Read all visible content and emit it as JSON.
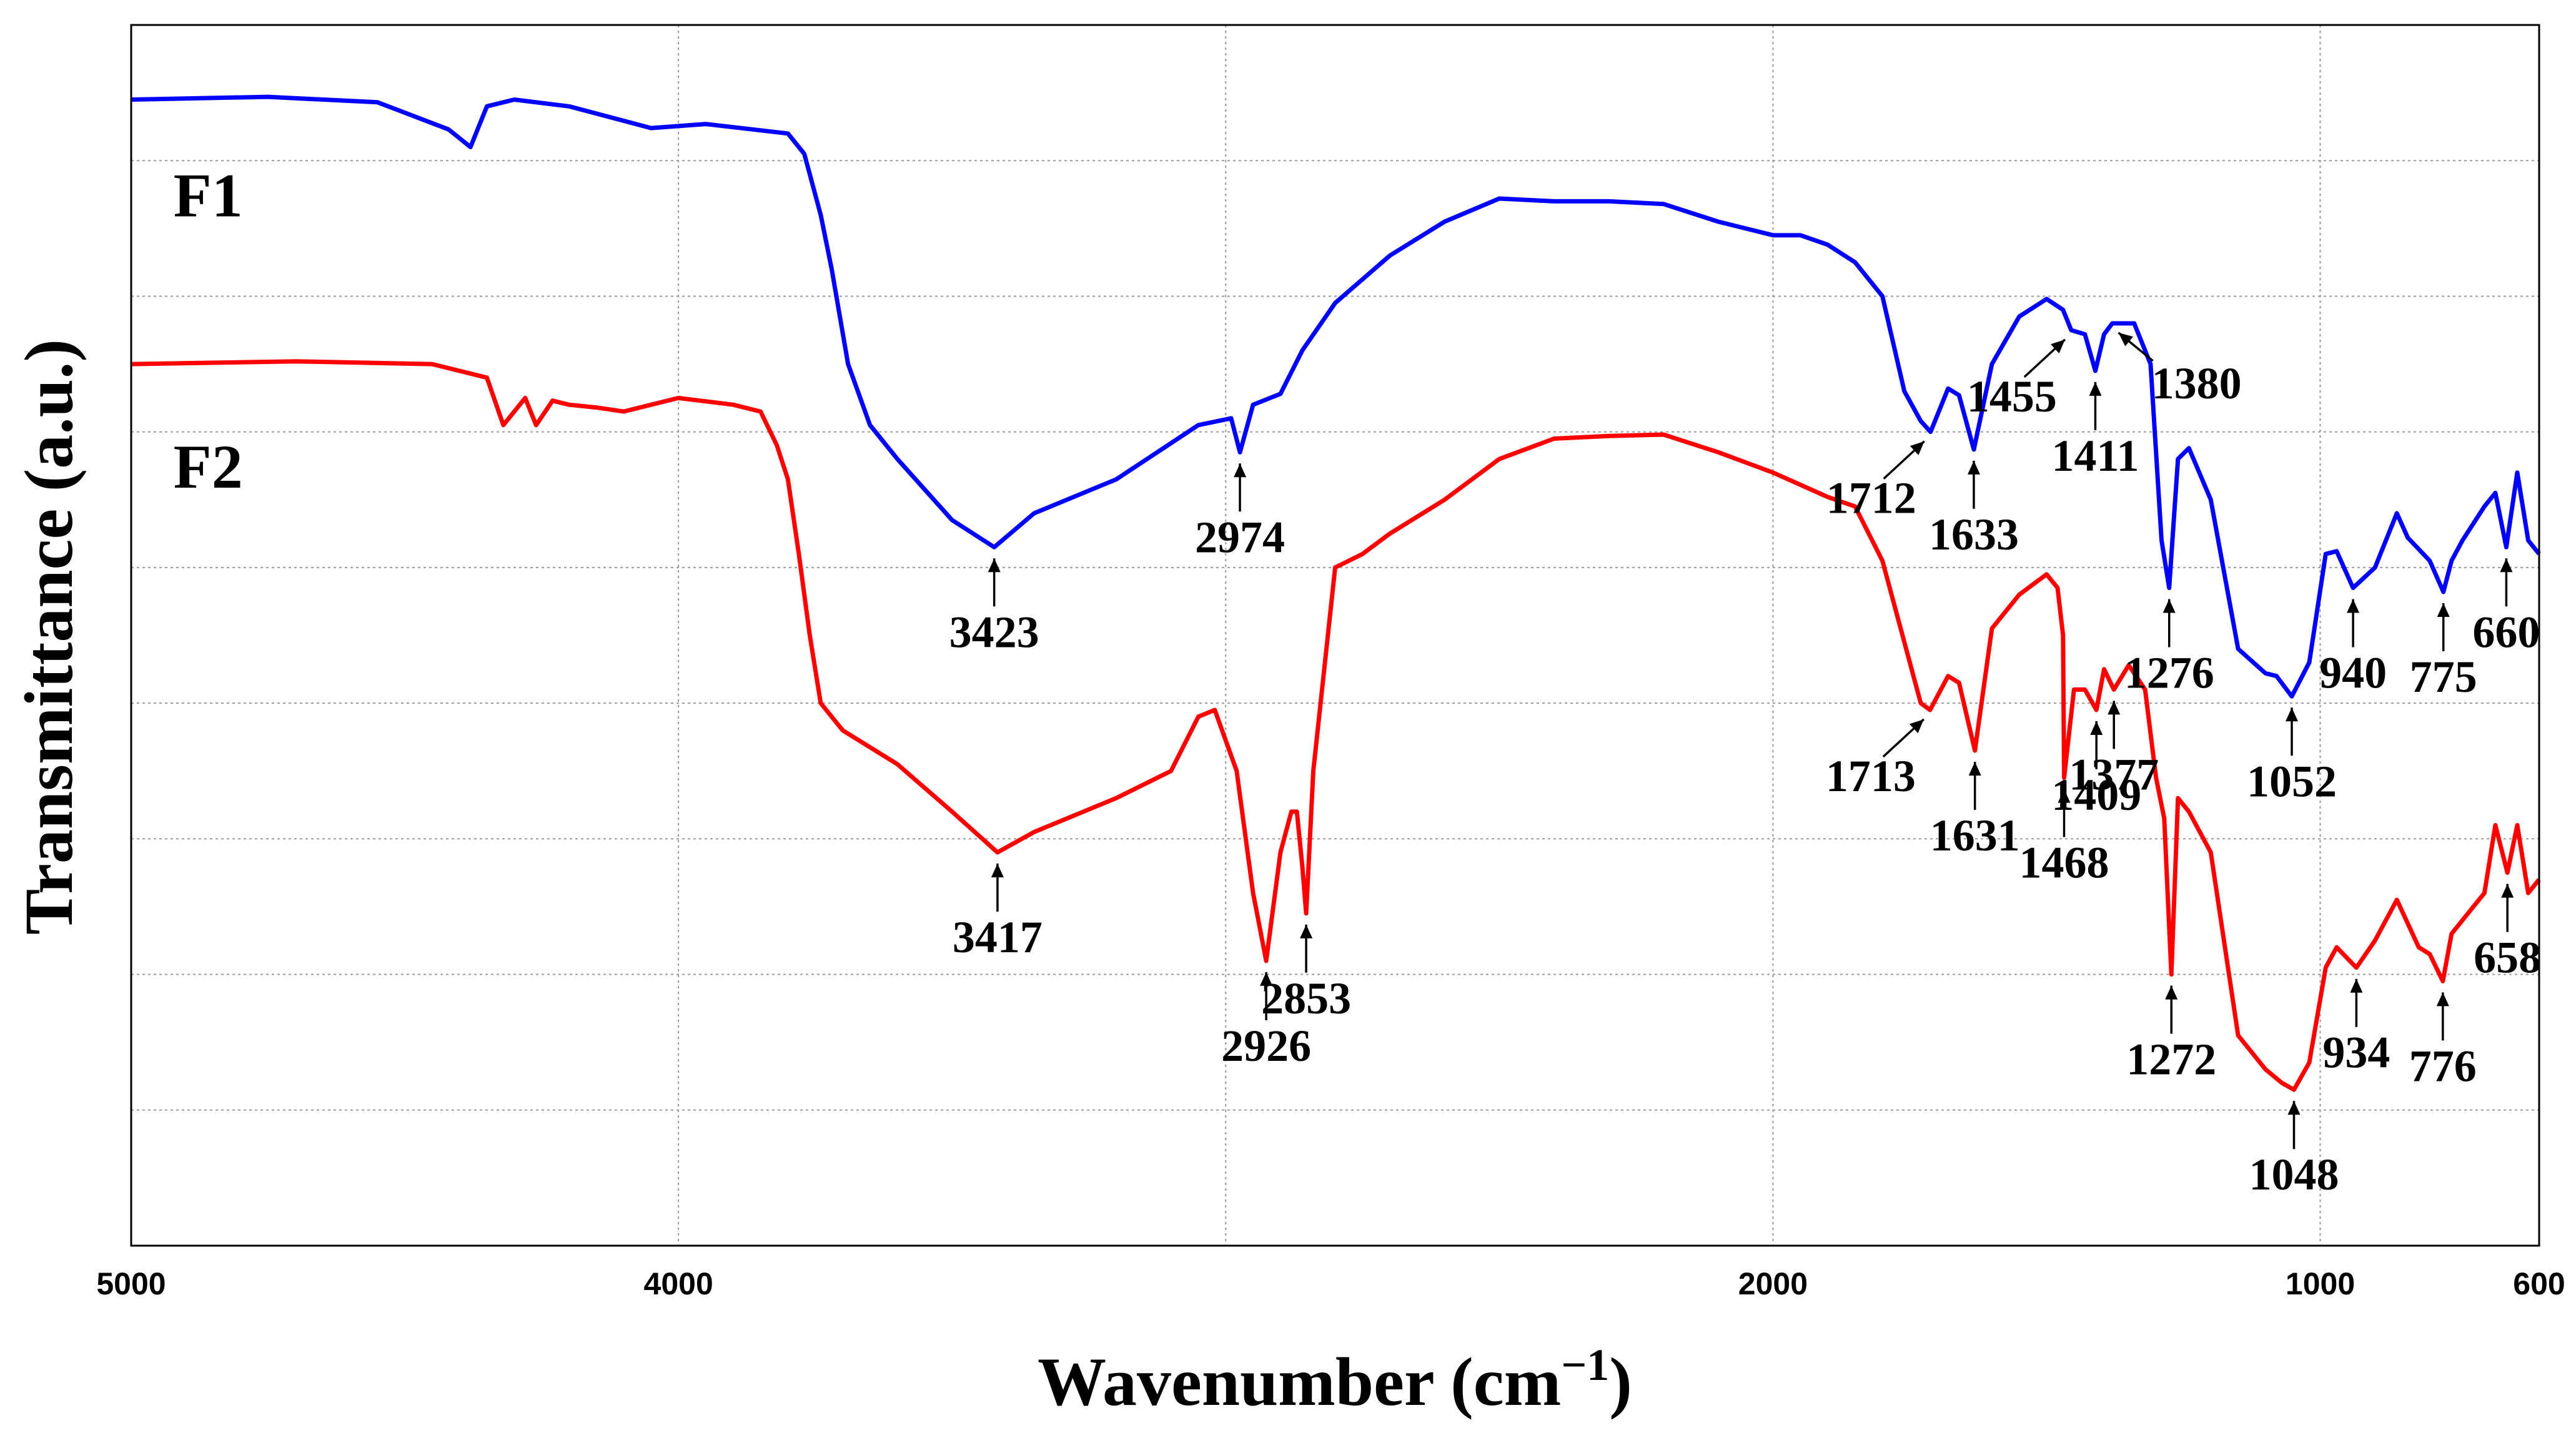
{
  "chart_data": {
    "type": "line",
    "title": "",
    "xlabel": "Wavenumber (cm",
    "xlabel_sup": "−1",
    "xlabel_close": ")",
    "ylabel": "Transmittance (a.u.)",
    "xlim": [
      5000,
      600
    ],
    "x_ticks": [
      {
        "value": 5000,
        "label": "5000"
      },
      {
        "value": 4000,
        "label": "4000"
      },
      {
        "value": 2000,
        "label": "2000"
      },
      {
        "value": 1000,
        "label": "1000"
      },
      {
        "value": 600,
        "label": "600"
      }
    ],
    "ylim": [
      0,
      9
    ],
    "y_gridlines": [
      1,
      2,
      3,
      4,
      5,
      6,
      7,
      8
    ],
    "x_gridlines": [
      4000,
      3000,
      2000,
      1000
    ],
    "series": [
      {
        "name": "F1",
        "color": "#0000ff",
        "x": [
          5000,
          4750,
          4550,
          4420,
          4380,
          4350,
          4300,
          4200,
          4050,
          3950,
          3800,
          3770,
          3740,
          3720,
          3690,
          3650,
          3600,
          3500,
          3423,
          3350,
          3200,
          3050,
          2990,
          2974,
          2950,
          2900,
          2860,
          2800,
          2700,
          2600,
          2500,
          2400,
          2300,
          2200,
          2100,
          2000,
          1950,
          1900,
          1850,
          1800,
          1760,
          1730,
          1712,
          1680,
          1660,
          1633,
          1600,
          1550,
          1500,
          1470,
          1455,
          1430,
          1411,
          1395,
          1380,
          1340,
          1310,
          1290,
          1276,
          1260,
          1240,
          1200,
          1150,
          1100,
          1080,
          1052,
          1020,
          990,
          970,
          940,
          900,
          860,
          840,
          800,
          775,
          760,
          740,
          700,
          680,
          660,
          640,
          620,
          600
        ],
        "values": [
          8.45,
          8.47,
          8.43,
          8.23,
          8.1,
          8.4,
          8.45,
          8.4,
          8.24,
          8.27,
          8.2,
          8.05,
          7.6,
          7.2,
          6.5,
          6.05,
          5.8,
          5.35,
          5.15,
          5.4,
          5.65,
          6.05,
          6.1,
          5.85,
          6.2,
          6.28,
          6.6,
          6.95,
          7.3,
          7.55,
          7.72,
          7.7,
          7.7,
          7.68,
          7.55,
          7.45,
          7.45,
          7.38,
          7.25,
          7.0,
          6.3,
          6.08,
          6.0,
          6.32,
          6.27,
          5.87,
          6.5,
          6.85,
          6.98,
          6.9,
          6.75,
          6.72,
          6.45,
          6.72,
          6.8,
          6.8,
          6.5,
          5.2,
          4.85,
          5.8,
          5.88,
          5.5,
          4.4,
          4.22,
          4.2,
          4.05,
          4.3,
          5.1,
          5.12,
          4.85,
          5.0,
          5.4,
          5.22,
          5.05,
          4.82,
          5.05,
          5.2,
          5.45,
          5.55,
          5.15,
          5.7,
          5.2,
          5.1
        ]
      },
      {
        "name": "F2",
        "color": "#ff0000",
        "x": [
          5000,
          4700,
          4450,
          4350,
          4320,
          4300,
          4280,
          4260,
          4230,
          4200,
          4150,
          4100,
          4000,
          3900,
          3850,
          3820,
          3800,
          3780,
          3760,
          3740,
          3700,
          3600,
          3500,
          3417,
          3350,
          3200,
          3100,
          3050,
          3020,
          2980,
          2950,
          2926,
          2900,
          2880,
          2870,
          2860,
          2853,
          2840,
          2800,
          2750,
          2700,
          2600,
          2500,
          2400,
          2300,
          2200,
          2100,
          2000,
          1900,
          1850,
          1800,
          1760,
          1730,
          1713,
          1680,
          1660,
          1631,
          1600,
          1550,
          1500,
          1480,
          1470,
          1468,
          1450,
          1430,
          1409,
          1395,
          1377,
          1350,
          1320,
          1300,
          1285,
          1272,
          1260,
          1240,
          1200,
          1150,
          1100,
          1070,
          1048,
          1020,
          990,
          970,
          934,
          900,
          860,
          820,
          800,
          776,
          760,
          740,
          700,
          680,
          658,
          640,
          620,
          600
        ],
        "values": [
          6.5,
          6.52,
          6.5,
          6.4,
          6.05,
          6.15,
          6.25,
          6.05,
          6.23,
          6.2,
          6.18,
          6.15,
          6.25,
          6.2,
          6.15,
          5.9,
          5.65,
          5.1,
          4.5,
          4.0,
          3.8,
          3.55,
          3.2,
          2.9,
          3.05,
          3.3,
          3.5,
          3.9,
          3.95,
          3.5,
          2.6,
          2.1,
          2.9,
          3.2,
          3.2,
          2.8,
          2.45,
          3.5,
          5.0,
          5.1,
          5.25,
          5.5,
          5.8,
          5.95,
          5.97,
          5.98,
          5.85,
          5.7,
          5.52,
          5.45,
          5.05,
          4.45,
          4.0,
          3.95,
          4.2,
          4.15,
          3.65,
          4.55,
          4.8,
          4.95,
          4.85,
          4.5,
          3.45,
          4.1,
          4.1,
          3.95,
          4.25,
          4.1,
          4.28,
          4.1,
          3.45,
          3.15,
          2.0,
          3.3,
          3.2,
          2.9,
          1.55,
          1.3,
          1.2,
          1.15,
          1.35,
          2.05,
          2.2,
          2.05,
          2.25,
          2.55,
          2.2,
          2.15,
          1.95,
          2.3,
          2.4,
          2.6,
          3.1,
          2.75,
          3.1,
          2.6,
          2.7
        ]
      }
    ],
    "series_labels": [
      {
        "text": "F1",
        "wavenumber": 4900,
        "y": 7.75
      },
      {
        "text": "F2",
        "wavenumber": 4900,
        "y": 5.75
      }
    ],
    "annotations": [
      {
        "series": "F1",
        "label": "3423",
        "x": 3423,
        "y": 5.15,
        "dir": "up"
      },
      {
        "series": "F1",
        "label": "2974",
        "x": 2974,
        "y": 5.85,
        "dir": "up"
      },
      {
        "series": "F1",
        "label": "1712",
        "x": 1712,
        "y": 6.0,
        "dir": "upright"
      },
      {
        "series": "F1",
        "label": "1633",
        "x": 1633,
        "y": 5.87,
        "dir": "up"
      },
      {
        "series": "F1",
        "label": "1455",
        "x": 1455,
        "y": 6.75,
        "dir": "upright"
      },
      {
        "series": "F1",
        "label": "1411",
        "x": 1411,
        "y": 6.45,
        "dir": "up"
      },
      {
        "series": "F1",
        "label": "1380",
        "x": 1380,
        "y": 6.8,
        "dir": "upleft"
      },
      {
        "series": "F1",
        "label": "1276",
        "x": 1276,
        "y": 4.85,
        "dir": "up"
      },
      {
        "series": "F1",
        "label": "1052",
        "x": 1052,
        "y": 4.05,
        "dir": "up"
      },
      {
        "series": "F1",
        "label": "940",
        "x": 940,
        "y": 4.85,
        "dir": "up"
      },
      {
        "series": "F1",
        "label": "775",
        "x": 775,
        "y": 4.82,
        "dir": "up"
      },
      {
        "series": "F1",
        "label": "660",
        "x": 660,
        "y": 5.15,
        "dir": "up"
      },
      {
        "series": "F2",
        "label": "3417",
        "x": 3417,
        "y": 2.9,
        "dir": "up"
      },
      {
        "series": "F2",
        "label": "2926",
        "x": 2926,
        "y": 2.1,
        "dir": "up"
      },
      {
        "series": "F2",
        "label": "2853",
        "x": 2853,
        "y": 2.45,
        "dir": "up"
      },
      {
        "series": "F2",
        "label": "1713",
        "x": 1713,
        "y": 3.95,
        "dir": "upright"
      },
      {
        "series": "F2",
        "label": "1631",
        "x": 1631,
        "y": 3.65,
        "dir": "up"
      },
      {
        "series": "F2",
        "label": "1468",
        "x": 1468,
        "y": 3.45,
        "dir": "up"
      },
      {
        "series": "F2",
        "label": "1409",
        "x": 1409,
        "y": 3.95,
        "dir": "up"
      },
      {
        "series": "F2",
        "label": "1377",
        "x": 1377,
        "y": 4.1,
        "dir": "up"
      },
      {
        "series": "F2",
        "label": "1272",
        "x": 1272,
        "y": 2.0,
        "dir": "up"
      },
      {
        "series": "F2",
        "label": "1048",
        "x": 1048,
        "y": 1.15,
        "dir": "up"
      },
      {
        "series": "F2",
        "label": "934",
        "x": 934,
        "y": 2.05,
        "dir": "up"
      },
      {
        "series": "F2",
        "label": "776",
        "x": 776,
        "y": 1.95,
        "dir": "up"
      },
      {
        "series": "F2",
        "label": "658",
        "x": 658,
        "y": 2.75,
        "dir": "up"
      }
    ]
  }
}
